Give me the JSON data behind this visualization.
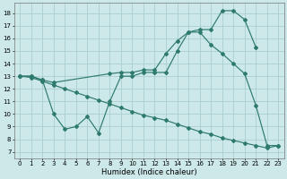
{
  "xlabel": "Humidex (Indice chaleur)",
  "bg_color": "#cce8e8",
  "grid_color": "#aacece",
  "line_color": "#2e7a6e",
  "xlim": [
    -0.5,
    23.5
  ],
  "ylim": [
    6.5,
    18.8
  ],
  "yticks": [
    7,
    8,
    9,
    10,
    11,
    12,
    13,
    14,
    15,
    16,
    17,
    18
  ],
  "xticks": [
    0,
    1,
    2,
    3,
    4,
    5,
    6,
    7,
    8,
    9,
    10,
    11,
    12,
    13,
    14,
    15,
    16,
    17,
    18,
    19,
    20,
    21,
    22,
    23
  ],
  "curve1_x": [
    0,
    1,
    2,
    3,
    4,
    5,
    6,
    7,
    8,
    9,
    10,
    11,
    12,
    13,
    14,
    15,
    16,
    17,
    18,
    19,
    20,
    21
  ],
  "curve1_y": [
    13,
    13,
    12.7,
    10.0,
    8.8,
    9.0,
    9.8,
    8.5,
    11.0,
    13.0,
    13.0,
    13.3,
    13.3,
    13.3,
    15.0,
    16.5,
    16.7,
    16.7,
    18.2,
    18.2,
    17.5,
    15.3
  ],
  "curve1_markers_x": [
    0,
    1,
    2,
    3,
    4,
    6,
    7,
    9,
    10,
    11,
    12,
    13,
    14,
    15,
    16,
    17,
    18,
    19,
    20,
    21
  ],
  "curve2_x": [
    0,
    1,
    2,
    3,
    8,
    9,
    10,
    11,
    12,
    13,
    14,
    15,
    16,
    17,
    18,
    19,
    20,
    21,
    22,
    23
  ],
  "curve2_y": [
    13,
    13,
    12.7,
    12.5,
    13.2,
    13.3,
    13.3,
    13.5,
    13.5,
    14.8,
    15.8,
    16.5,
    16.5,
    15.5,
    14.8,
    14.0,
    13.2,
    10.7,
    7.5,
    7.5
  ],
  "curve2_markers_x": [
    0,
    1,
    2,
    9,
    11,
    12,
    13,
    14,
    15,
    16,
    17,
    19,
    21,
    22,
    23
  ],
  "curve3_x": [
    0,
    1,
    2,
    3,
    4,
    5,
    6,
    7,
    8,
    9,
    10,
    11,
    12,
    13,
    14,
    15,
    16,
    17,
    18,
    19,
    20,
    21,
    22,
    23
  ],
  "curve3_y": [
    13,
    12.9,
    12.6,
    12.3,
    12.0,
    11.7,
    11.4,
    11.1,
    10.8,
    10.5,
    10.2,
    9.9,
    9.7,
    9.5,
    9.2,
    8.9,
    8.6,
    8.4,
    8.1,
    7.9,
    7.7,
    7.5,
    7.3,
    7.5
  ],
  "curve3_markers_x": [
    0,
    3,
    5,
    8,
    11,
    14,
    17,
    19,
    21,
    22,
    23
  ]
}
